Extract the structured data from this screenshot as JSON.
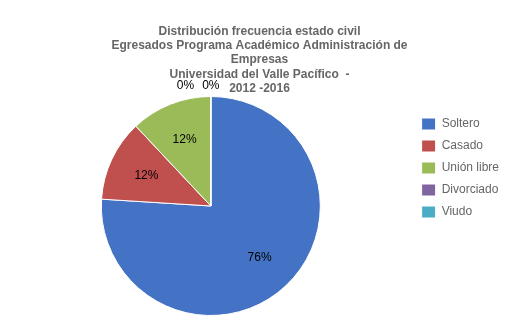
{
  "chart_data": {
    "type": "pie",
    "title": "Distribución frecuencia estado civil\nEgresados Programa Académico Administración de\nEmpresas\nUniversidad del Valle Pacífico  -\n2012 -2016",
    "categories": [
      "Soltero",
      "Casado",
      "Unión libre",
      "Divorciado",
      "Viudo"
    ],
    "values": [
      76,
      12,
      12,
      0.001,
      0.001
    ],
    "value_labels": [
      "76%",
      "12%",
      "12%",
      "0%",
      "0%"
    ],
    "colors": [
      "#4472C4",
      "#C0504D",
      "#9BBB59",
      "#8064A2",
      "#4BACC6"
    ],
    "data_labels": true,
    "legend": "right"
  }
}
